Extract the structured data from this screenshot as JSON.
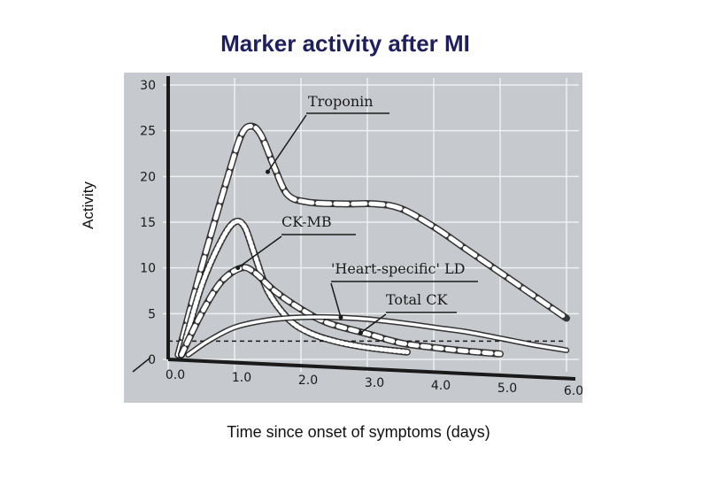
{
  "slide": {
    "title": "Marker activity after MI",
    "ylabel": "Activity",
    "xlabel": "Time since onset of symptoms (days)"
  },
  "colors": {
    "title": "#1f1f5e",
    "photo_bg": "#c6c9cd",
    "grid": "#eef0f2",
    "curve": "#ffffff",
    "ink": "#1a1a1a"
  },
  "chart_data": {
    "type": "line",
    "title": "Marker activity after MI",
    "xlabel": "Time since onset of symptoms (days)",
    "ylabel": "Activity",
    "xlim": [
      0,
      6
    ],
    "ylim": [
      0,
      30
    ],
    "x_ticks": [
      "0.0",
      "1.0",
      "2.0",
      "3.0",
      "4.0",
      "5.0",
      "6.0"
    ],
    "y_ticks": [
      "0",
      "5",
      "10",
      "15",
      "20",
      "25",
      "30"
    ],
    "grid": true,
    "reference_line": {
      "y": 2,
      "style": "dashed"
    },
    "series": [
      {
        "name": "Troponin",
        "style": "long-dash",
        "points": [
          [
            0.15,
            0.5
          ],
          [
            0.5,
            10
          ],
          [
            0.9,
            20
          ],
          [
            1.1,
            24.5
          ],
          [
            1.25,
            25.5
          ],
          [
            1.4,
            24.5
          ],
          [
            1.6,
            21
          ],
          [
            1.8,
            18
          ],
          [
            2.1,
            17.2
          ],
          [
            2.6,
            17
          ],
          [
            3.1,
            17
          ],
          [
            3.5,
            16.5
          ],
          [
            4.0,
            14.5
          ],
          [
            4.5,
            12
          ],
          [
            5.0,
            9.5
          ],
          [
            5.5,
            7
          ],
          [
            6.0,
            4.5
          ]
        ]
      },
      {
        "name": "CK-MB",
        "style": "dotted",
        "points": [
          [
            0.2,
            0.5
          ],
          [
            0.5,
            8
          ],
          [
            0.8,
            13
          ],
          [
            1.0,
            15
          ],
          [
            1.15,
            14.5
          ],
          [
            1.3,
            11.5
          ],
          [
            1.5,
            7.5
          ],
          [
            1.8,
            4.5
          ],
          [
            2.1,
            3
          ],
          [
            2.5,
            2
          ],
          [
            3.0,
            1.3
          ],
          [
            3.6,
            0.8
          ]
        ]
      },
      {
        "name": "Total CK",
        "style": "dashed",
        "points": [
          [
            0.2,
            0.5
          ],
          [
            0.5,
            5
          ],
          [
            0.8,
            8.5
          ],
          [
            1.1,
            10
          ],
          [
            1.3,
            9.5
          ],
          [
            1.6,
            7.5
          ],
          [
            2.0,
            5.5
          ],
          [
            2.4,
            4
          ],
          [
            3.0,
            2.8
          ],
          [
            3.5,
            1.8
          ],
          [
            4.0,
            1.3
          ],
          [
            4.5,
            0.9
          ],
          [
            5.0,
            0.6
          ]
        ]
      },
      {
        "name": "'Heart-specific' LD",
        "style": "solid",
        "points": [
          [
            0.3,
            0.5
          ],
          [
            0.6,
            2
          ],
          [
            1.0,
            3.5
          ],
          [
            1.5,
            4.3
          ],
          [
            2.0,
            4.6
          ],
          [
            2.5,
            4.6
          ],
          [
            3.0,
            4.4
          ],
          [
            3.5,
            4
          ],
          [
            4.0,
            3.5
          ],
          [
            4.5,
            3
          ],
          [
            5.0,
            2.3
          ],
          [
            5.5,
            1.6
          ],
          [
            6.0,
            1
          ]
        ]
      }
    ],
    "annotations": [
      {
        "text": "Troponin"
      },
      {
        "text": "CK-MB"
      },
      {
        "text": "'Heart-specific' LD"
      },
      {
        "text": "Total CK"
      }
    ]
  }
}
